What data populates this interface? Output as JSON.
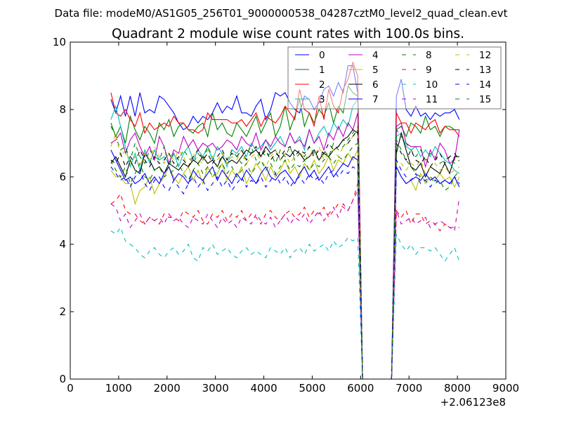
{
  "chart_data": {
    "type": "line",
    "suptitle": "Data file: modeM0/AS1G05_256T01_9000000538_04287cztM0_level2_quad_clean.evt",
    "title": "Quadrant 2 module wise count rates with 100.0s bins.",
    "xlabel": "",
    "ylabel": "",
    "x_offset_label": "+2.06123e8",
    "xlim": [
      0,
      9000
    ],
    "ylim": [
      0,
      10
    ],
    "xticks": [
      0,
      1000,
      2000,
      3000,
      4000,
      5000,
      6000,
      7000,
      8000,
      9000
    ],
    "yticks": [
      0,
      2,
      4,
      6,
      8,
      10
    ],
    "grid": false,
    "legend_position": "top-right",
    "x_start": 840,
    "x_step": 100,
    "series": [
      {
        "name": "0",
        "color": "#0000ff",
        "style": "solid",
        "values": [
          8.3,
          7.9,
          8.4,
          7.8,
          8.4,
          7.8,
          8.5,
          7.9,
          8.0,
          7.9,
          8.4,
          8.3,
          8.1,
          7.9,
          7.6,
          7.4,
          7.5,
          7.8,
          7.6,
          7.8,
          7.7,
          7.9,
          8.2,
          7.9,
          8.1,
          8.0,
          8.4,
          7.9,
          7.9,
          7.8,
          8.1,
          8.3,
          7.7,
          8.0,
          8.5,
          8.4,
          8.5,
          8.2,
          8.0,
          7.9,
          8.4,
          8.3,
          8.0,
          8.2,
          8.6,
          8.7,
          8.4,
          8.8,
          8.5,
          9.3,
          9.3,
          8.5,
          0,
          0,
          0,
          0,
          0,
          0,
          0,
          8.4,
          8.9,
          8.0,
          7.8,
          8.1,
          7.8,
          7.9,
          7.7,
          7.9,
          7.8,
          7.9,
          7.9,
          8.0,
          7.7
        ]
      },
      {
        "name": "1",
        "color": "#008000",
        "style": "solid",
        "values": [
          7.6,
          7.2,
          7.5,
          7.0,
          7.8,
          7.4,
          7.1,
          7.5,
          7.3,
          7.0,
          7.6,
          7.4,
          7.7,
          7.2,
          7.5,
          7.6,
          7.4,
          7.3,
          7.5,
          7.6,
          7.2,
          7.9,
          7.4,
          7.6,
          7.3,
          7.2,
          7.6,
          7.4,
          7.2,
          7.5,
          7.8,
          7.3,
          7.6,
          7.9,
          7.2,
          7.5,
          8.1,
          7.4,
          7.8,
          8.3,
          7.5,
          7.9,
          7.6,
          8.0,
          7.8,
          8.2,
          7.6,
          8.1,
          7.9,
          8.7,
          8.5,
          8.4,
          0,
          0,
          0,
          0,
          0,
          0,
          0,
          7.4,
          7.5,
          7.2,
          7.6,
          7.5,
          7.3,
          7.8,
          7.4,
          7.5,
          7.2,
          7.5,
          7.5,
          7.4,
          7.4
        ]
      },
      {
        "name": "2",
        "color": "#ff0000",
        "style": "solid",
        "values": [
          8.5,
          7.9,
          7.8,
          8.0,
          7.7,
          7.5,
          7.9,
          7.3,
          7.6,
          7.4,
          7.5,
          7.6,
          7.5,
          7.8,
          7.6,
          7.6,
          7.4,
          7.4,
          7.3,
          7.4,
          7.9,
          7.7,
          7.7,
          7.7,
          7.7,
          7.6,
          7.6,
          7.7,
          7.5,
          7.7,
          7.9,
          7.5,
          7.8,
          7.7,
          7.6,
          7.8,
          8.1,
          7.9,
          7.7,
          8.6,
          8.0,
          7.9,
          7.5,
          8.4,
          7.7,
          8.6,
          8.1,
          7.9,
          8.6,
          8.9,
          9.4,
          9.0,
          0,
          0,
          0,
          0,
          0,
          0,
          0,
          7.9,
          7.6,
          7.6,
          7.3,
          7.6,
          7.5,
          7.4,
          7.6,
          7.7,
          7.3,
          7.5,
          7.4,
          7.4,
          7.2
        ]
      },
      {
        "name": "3",
        "color": "#00bfbf",
        "style": "solid",
        "values": [
          7.7,
          8.1,
          7.5,
          6.9,
          6.3,
          6.7,
          6.2,
          6.8,
          6.4,
          6.8,
          6.5,
          6.6,
          6.4,
          6.7,
          6.3,
          6.7,
          6.9,
          6.5,
          6.8,
          6.6,
          6.9,
          6.5,
          6.9,
          6.7,
          6.3,
          6.8,
          6.7,
          6.9,
          6.6,
          7.0,
          6.8,
          6.9,
          7.1,
          6.8,
          7.0,
          7.2,
          6.9,
          7.3,
          7.0,
          7.2,
          6.8,
          7.4,
          7.0,
          7.3,
          7.5,
          7.2,
          7.6,
          7.4,
          7.7,
          7.5,
          8.1,
          8.3,
          0,
          0,
          0,
          0,
          0,
          0,
          0,
          7.2,
          7.3,
          6.9,
          6.8,
          6.9,
          6.6,
          6.8,
          6.6,
          6.9,
          6.7,
          6.5,
          6.4,
          6.2,
          6.1
        ]
      },
      {
        "name": "4",
        "color": "#bf00bf",
        "style": "solid",
        "values": [
          7.0,
          7.1,
          7.3,
          6.7,
          7.1,
          7.3,
          6.9,
          6.6,
          6.9,
          6.5,
          7.2,
          6.9,
          6.4,
          6.8,
          6.7,
          7.2,
          6.9,
          7.1,
          6.8,
          7.0,
          6.9,
          7.0,
          6.8,
          6.9,
          7.1,
          7.0,
          6.8,
          7.2,
          7.0,
          6.9,
          7.3,
          6.8,
          7.1,
          6.9,
          7.2,
          7.0,
          6.9,
          7.3,
          7.0,
          7.1,
          6.9,
          7.4,
          7.0,
          7.2,
          6.8,
          7.3,
          7.1,
          7.5,
          7.2,
          7.6,
          7.4,
          7.9,
          0,
          0,
          0,
          0,
          0,
          0,
          0,
          7.5,
          7.6,
          7.0,
          6.9,
          6.9,
          6.9,
          6.3,
          6.8,
          6.5,
          7.0,
          6.8,
          6.4,
          6.5,
          7.4
        ]
      },
      {
        "name": "5",
        "color": "#bfbf00",
        "style": "solid",
        "values": [
          6.2,
          6.0,
          6.0,
          5.8,
          5.8,
          5.2,
          5.6,
          5.7,
          6.0,
          5.5,
          5.8,
          6.0,
          6.3,
          6.0,
          5.8,
          6.1,
          6.3,
          5.9,
          6.2,
          5.8,
          6.3,
          6.0,
          6.1,
          6.4,
          5.9,
          6.2,
          6.0,
          6.3,
          5.8,
          6.1,
          6.4,
          6.2,
          5.9,
          6.3,
          6.0,
          6.2,
          6.5,
          6.1,
          6.3,
          6.0,
          6.4,
          6.2,
          6.5,
          6.1,
          6.3,
          6.6,
          6.2,
          6.5,
          6.4,
          6.7,
          6.5,
          6.8,
          0,
          0,
          0,
          0,
          0,
          0,
          0,
          6.3,
          6.0,
          5.8,
          5.9,
          5.6,
          6.1,
          5.8,
          6.0,
          5.9,
          6.1,
          5.9,
          6.0,
          5.7,
          6.0
        ]
      },
      {
        "name": "6",
        "color": "#000000",
        "style": "solid",
        "values": [
          6.4,
          6.6,
          6.3,
          6.0,
          6.5,
          6.2,
          6.1,
          6.7,
          6.5,
          6.2,
          6.3,
          6.1,
          6.4,
          6.3,
          6.2,
          6.4,
          6.3,
          6.5,
          6.4,
          6.6,
          6.4,
          6.5,
          6.3,
          6.6,
          6.4,
          6.5,
          6.4,
          6.6,
          6.8,
          6.7,
          6.8,
          6.6,
          6.9,
          6.7,
          6.8,
          6.5,
          6.7,
          6.6,
          6.8,
          6.7,
          6.5,
          6.6,
          6.8,
          6.5,
          6.7,
          6.6,
          6.8,
          6.9,
          7.1,
          7.2,
          7.4,
          7.3,
          0,
          0,
          0,
          0,
          0,
          0,
          0,
          6.7,
          7.3,
          6.8,
          6.3,
          6.2,
          6.4,
          6.0,
          6.3,
          6.2,
          6.1,
          6.4,
          6.1,
          6.6,
          6.6
        ]
      },
      {
        "name": "7",
        "color": "#0000ff",
        "style": "solid",
        "values": [
          6.8,
          6.5,
          6.2,
          5.9,
          6.0,
          5.8,
          5.9,
          6.1,
          5.8,
          6.0,
          5.8,
          6.1,
          6.3,
          5.9,
          6.1,
          6.0,
          5.8,
          6.2,
          6.0,
          5.9,
          6.1,
          6.3,
          5.9,
          6.2,
          6.0,
          5.8,
          6.1,
          5.9,
          6.2,
          6.0,
          5.8,
          6.1,
          6.3,
          6.0,
          5.9,
          6.1,
          6.2,
          6.0,
          5.8,
          6.1,
          6.3,
          6.0,
          6.2,
          5.9,
          6.1,
          6.3,
          6.0,
          6.2,
          6.4,
          6.3,
          6.6,
          6.5,
          0,
          0,
          0,
          0,
          0,
          0,
          0,
          6.3,
          6.0,
          5.8,
          5.9,
          6.0,
          5.9,
          6.1,
          5.9,
          6.0,
          5.8,
          5.9,
          5.8,
          6.0,
          5.7
        ]
      },
      {
        "name": "8",
        "color": "#008000",
        "style": "dashed",
        "values": [
          7.5,
          7.2,
          6.8,
          6.9,
          6.5,
          7.0,
          6.6,
          6.4,
          6.8,
          6.6,
          6.5,
          6.9,
          6.3,
          6.7,
          6.5,
          6.8,
          6.6,
          6.4,
          6.7,
          6.5,
          6.9,
          6.6,
          6.3,
          6.7,
          6.5,
          6.8,
          6.6,
          6.4,
          6.7,
          6.9,
          6.5,
          6.8,
          6.6,
          6.7,
          6.4,
          6.8,
          6.6,
          6.9,
          6.5,
          6.7,
          6.6,
          6.9,
          6.7,
          6.5,
          6.8,
          6.6,
          7.0,
          6.8,
          6.9,
          7.1,
          7.3,
          7.5,
          0,
          0,
          0,
          0,
          0,
          0,
          0,
          7.4,
          7.2,
          7.0,
          6.8,
          6.6,
          6.8,
          6.5,
          6.7,
          6.6,
          6.4,
          6.5,
          6.6,
          6.4,
          6.5
        ]
      },
      {
        "name": "9",
        "color": "#ff0000",
        "style": "dashed",
        "values": [
          5.2,
          5.3,
          5.5,
          5.0,
          4.9,
          4.9,
          4.7,
          4.6,
          4.8,
          4.7,
          4.6,
          4.9,
          4.8,
          4.8,
          4.7,
          5.0,
          4.9,
          4.8,
          5.0,
          4.7,
          4.6,
          4.9,
          4.8,
          5.0,
          4.7,
          4.9,
          4.8,
          5.0,
          4.7,
          4.9,
          4.8,
          4.6,
          4.9,
          5.0,
          4.8,
          4.7,
          4.9,
          5.0,
          4.8,
          4.9,
          5.1,
          4.8,
          5.0,
          4.9,
          5.1,
          4.8,
          5.0,
          5.2,
          5.1,
          5.0,
          5.3,
          5.8,
          0,
          0,
          0,
          0,
          0,
          0,
          0,
          5.0,
          4.8,
          5.0,
          4.6,
          4.9,
          4.9,
          4.6,
          4.7,
          4.6,
          4.4,
          4.6,
          4.5,
          4.5,
          4.5
        ]
      },
      {
        "name": "10",
        "color": "#00bfbf",
        "style": "dashed",
        "values": [
          4.4,
          4.3,
          4.5,
          4.1,
          4.0,
          3.9,
          3.7,
          3.6,
          3.8,
          3.9,
          3.7,
          3.6,
          3.8,
          3.9,
          3.7,
          3.8,
          4.0,
          3.6,
          3.5,
          3.9,
          3.8,
          4.0,
          3.7,
          3.8,
          3.9,
          3.7,
          3.6,
          3.8,
          3.9,
          3.7,
          3.8,
          3.7,
          3.6,
          3.9,
          3.8,
          3.7,
          3.9,
          3.6,
          3.8,
          3.9,
          3.7,
          4.0,
          3.8,
          3.9,
          4.0,
          3.8,
          4.1,
          3.9,
          4.0,
          4.2,
          4.1,
          4.2,
          0,
          0,
          0,
          0,
          0,
          0,
          0,
          4.3,
          4.0,
          3.8,
          4.0,
          3.7,
          3.9,
          3.9,
          3.8,
          3.9,
          3.7,
          3.5,
          3.7,
          3.9,
          3.5
        ]
      },
      {
        "name": "11",
        "color": "#bf00bf",
        "style": "dashed",
        "values": [
          5.2,
          5.1,
          4.7,
          4.9,
          4.5,
          4.7,
          4.9,
          4.6,
          4.8,
          4.7,
          4.8,
          4.6,
          4.9,
          4.7,
          4.8,
          4.6,
          4.5,
          4.8,
          4.7,
          4.6,
          4.9,
          4.7,
          4.5,
          4.8,
          4.6,
          4.7,
          4.5,
          4.8,
          4.7,
          4.6,
          4.9,
          4.7,
          4.6,
          4.8,
          4.5,
          4.7,
          4.9,
          4.6,
          4.8,
          4.7,
          4.9,
          4.6,
          4.8,
          5.0,
          4.7,
          4.9,
          5.1,
          4.8,
          5.2,
          5.0,
          5.3,
          5.6,
          0,
          0,
          0,
          0,
          0,
          0,
          0,
          5.0,
          4.6,
          4.7,
          4.8,
          4.6,
          4.7,
          4.8,
          4.5,
          4.6,
          4.7,
          4.6,
          4.5,
          4.4,
          5.4
        ]
      },
      {
        "name": "12",
        "color": "#bfbf00",
        "style": "dashed",
        "values": [
          6.9,
          7.3,
          6.6,
          6.8,
          6.4,
          6.6,
          6.3,
          6.7,
          6.5,
          6.9,
          6.6,
          6.4,
          6.7,
          6.5,
          6.8,
          6.6,
          6.3,
          6.7,
          6.5,
          6.4,
          6.8,
          6.6,
          6.5,
          6.7,
          6.4,
          6.6,
          6.5,
          6.8,
          6.4,
          6.6,
          6.7,
          6.5,
          6.3,
          6.6,
          6.8,
          6.5,
          6.7,
          6.4,
          6.6,
          6.8,
          6.5,
          6.7,
          6.6,
          6.9,
          6.5,
          6.7,
          6.8,
          6.6,
          6.9,
          7.0,
          7.2,
          7.4,
          0,
          0,
          0,
          0,
          0,
          0,
          0,
          6.5,
          6.4,
          6.2,
          6.4,
          6.3,
          6.5,
          6.1,
          6.3,
          6.4,
          6.2,
          6.3,
          6.1,
          6.2,
          6.3
        ]
      },
      {
        "name": "13",
        "color": "#000000",
        "style": "dashed",
        "values": [
          6.5,
          6.4,
          6.7,
          6.3,
          6.6,
          6.4,
          6.8,
          6.5,
          6.3,
          6.6,
          6.4,
          6.5,
          6.7,
          6.4,
          6.6,
          6.5,
          6.3,
          6.6,
          6.8,
          6.5,
          6.7,
          6.4,
          6.6,
          6.8,
          6.5,
          6.7,
          6.6,
          6.8,
          6.5,
          6.7,
          6.9,
          6.6,
          6.8,
          6.5,
          6.7,
          6.6,
          6.8,
          6.9,
          6.6,
          6.8,
          6.7,
          6.9,
          6.6,
          6.8,
          6.7,
          7.0,
          6.8,
          6.9,
          7.1,
          7.0,
          7.2,
          7.4,
          0,
          0,
          0,
          0,
          0,
          0,
          0,
          7.0,
          6.7,
          6.5,
          6.8,
          6.5,
          6.4,
          6.6,
          6.3,
          6.5,
          6.7,
          6.4,
          6.6,
          6.7,
          6.5
        ]
      },
      {
        "name": "14",
        "color": "#0000ff",
        "style": "dashed",
        "values": [
          6.3,
          6.1,
          5.9,
          6.0,
          5.7,
          6.0,
          6.2,
          5.8,
          5.6,
          5.9,
          6.0,
          5.7,
          5.6,
          5.9,
          5.7,
          5.5,
          5.8,
          6.0,
          5.7,
          5.9,
          5.6,
          5.8,
          6.0,
          5.7,
          5.9,
          5.6,
          5.8,
          6.0,
          5.7,
          5.9,
          5.8,
          6.0,
          5.7,
          5.9,
          6.1,
          5.8,
          6.0,
          5.7,
          5.9,
          6.0,
          5.8,
          6.1,
          5.9,
          6.0,
          5.8,
          6.1,
          6.2,
          6.0,
          6.2,
          6.1,
          6.3,
          6.2,
          0,
          0,
          0,
          0,
          0,
          0,
          0,
          6.5,
          6.2,
          6.0,
          5.9,
          6.1,
          5.8,
          5.9,
          5.7,
          5.9,
          5.8,
          5.9,
          5.8,
          6.0,
          5.8
        ]
      },
      {
        "name": "15",
        "color": "#008000",
        "style": "dashed",
        "values": [
          6.5,
          6.2,
          6.0,
          6.3,
          5.8,
          6.1,
          6.4,
          6.0,
          5.9,
          6.2,
          6.3,
          6.0,
          6.1,
          6.2,
          6.4,
          6.1,
          5.9,
          6.2,
          6.4,
          6.1,
          6.3,
          6.0,
          6.2,
          6.4,
          6.1,
          6.3,
          6.0,
          6.2,
          6.4,
          6.1,
          6.3,
          6.5,
          6.2,
          6.4,
          6.1,
          6.3,
          6.5,
          6.2,
          6.4,
          6.3,
          6.5,
          6.2,
          6.4,
          6.3,
          6.5,
          6.6,
          6.4,
          6.6,
          6.5,
          6.7,
          6.9,
          7.0,
          0,
          0,
          0,
          0,
          0,
          0,
          0,
          7.1,
          6.8,
          6.5,
          6.3,
          6.1,
          6.0,
          5.9,
          6.0,
          5.8,
          5.9,
          5.6,
          5.7,
          6.0,
          6.2
        ]
      }
    ]
  }
}
